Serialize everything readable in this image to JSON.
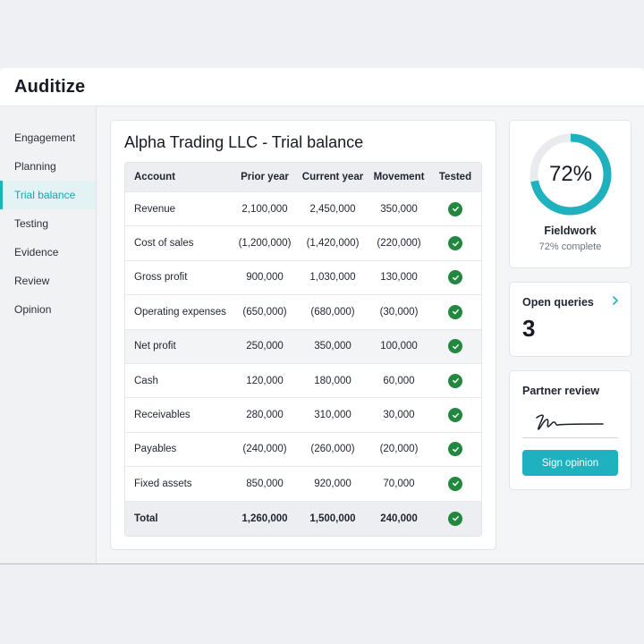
{
  "app": {
    "brand": "Auditize"
  },
  "sidebar": {
    "items": [
      {
        "label": "Engagement",
        "active": false
      },
      {
        "label": "Planning",
        "active": false
      },
      {
        "label": "Trial balance",
        "active": true
      },
      {
        "label": "Testing",
        "active": false
      },
      {
        "label": "Evidence",
        "active": false
      },
      {
        "label": "Review",
        "active": false
      },
      {
        "label": "Opinion",
        "active": false
      }
    ]
  },
  "main": {
    "title": "Alpha Trading LLC - Trial balance",
    "columns": [
      "Account",
      "Prior year",
      "Current year",
      "Movement",
      "Tested"
    ],
    "rows": [
      {
        "account": "Revenue",
        "prior": "2,100,000",
        "current": "2,450,000",
        "movement": "350,000",
        "tested": true
      },
      {
        "account": "Cost of sales",
        "prior": "(1,200,000)",
        "current": "(1,420,000)",
        "movement": "(220,000)",
        "tested": true
      },
      {
        "account": "Gross profit",
        "prior": "900,000",
        "current": "1,030,000",
        "movement": "130,000",
        "tested": true
      },
      {
        "account": "Operating expenses",
        "prior": "(650,000)",
        "current": "(680,000)",
        "movement": "(30,000)",
        "tested": true
      },
      {
        "account": "Net profit",
        "prior": "250,000",
        "current": "350,000",
        "movement": "100,000",
        "tested": true,
        "shaded": true
      },
      {
        "account": "Cash",
        "prior": "120,000",
        "current": "180,000",
        "movement": "60,000",
        "tested": true
      },
      {
        "account": "Receivables",
        "prior": "280,000",
        "current": "310,000",
        "movement": "30,000",
        "tested": true
      },
      {
        "account": "Payables",
        "prior": "(240,000)",
        "current": "(260,000)",
        "movement": "(20,000)",
        "tested": true
      },
      {
        "account": "Fixed assets",
        "prior": "850,000",
        "current": "920,000",
        "movement": "70,000",
        "tested": true
      },
      {
        "account": "Total",
        "prior": "1,260,000",
        "current": "1,500,000",
        "movement": "240,000",
        "tested": true,
        "total": true
      }
    ]
  },
  "fieldwork": {
    "percent_label": "72%",
    "progress": 0.72,
    "title": "Fieldwork",
    "subtitle": "72% complete"
  },
  "queries": {
    "title": "Open queries",
    "count": "3"
  },
  "partner_review": {
    "title": "Partner review",
    "button_label": "Sign opinion"
  },
  "colors": {
    "accent": "#1fb1bd",
    "check": "#22873f",
    "track": "#e9ebee"
  },
  "icons": {
    "tested": "check-circle-icon",
    "chevron": "chevron-right-icon",
    "signature": "signature-icon"
  }
}
